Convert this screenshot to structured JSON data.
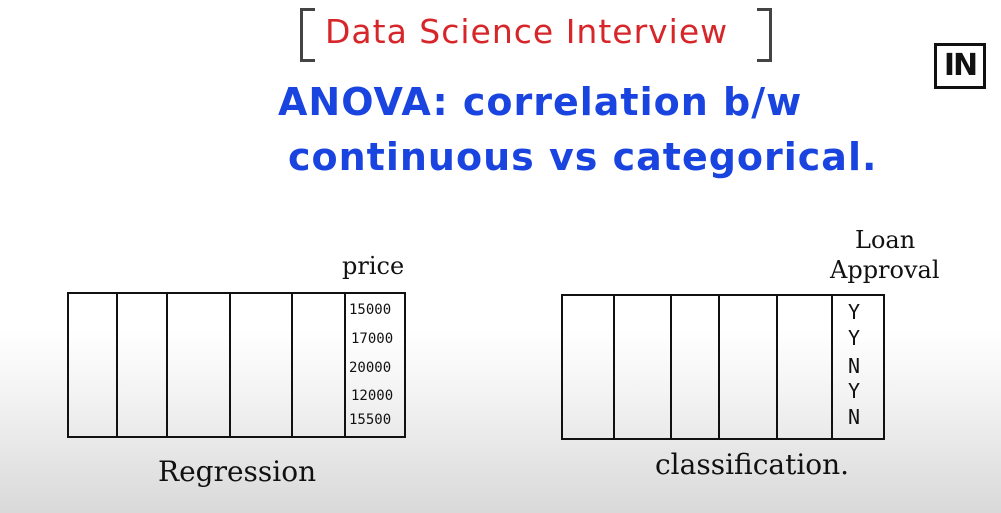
{
  "title": "Data Science Interview",
  "heading_line1": "ANOVA: correlation b/w",
  "heading_line2": "continuous vs categorical.",
  "logo_text": "IN",
  "left_table": {
    "header": "price",
    "values": [
      "15000",
      "17000",
      "20000",
      "12000",
      "15500"
    ],
    "caption": "Regression"
  },
  "right_table": {
    "header_line1": "Loan",
    "header_line2": "Approval",
    "values": [
      "Y",
      "Y",
      "N",
      "Y",
      "N"
    ],
    "caption": "classification."
  },
  "colors": {
    "red": "#d7262a",
    "blue": "#1a44e0",
    "ink": "#111111"
  }
}
